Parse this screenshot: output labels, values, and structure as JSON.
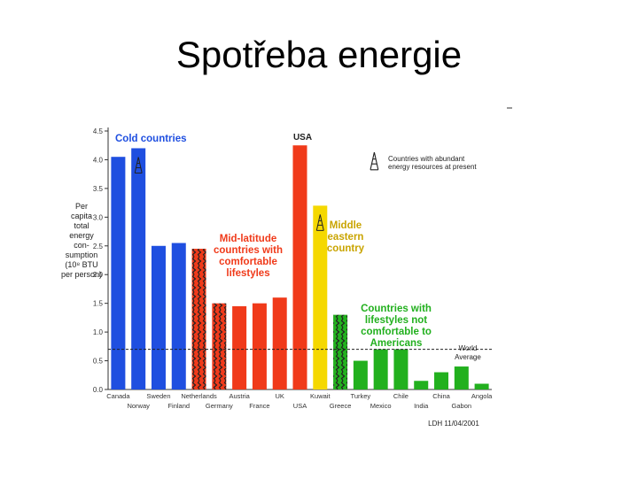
{
  "slide": {
    "title": "Spotřeba energie"
  },
  "chart_data": {
    "type": "bar",
    "ylabel_lines": [
      "Per",
      "capita",
      "total",
      "energy",
      "con-",
      "sumption",
      "(10⁸ BTU",
      "per person)"
    ],
    "ylim": [
      0,
      4.5
    ],
    "yticks": [
      "4.5",
      "4.0",
      "3.5",
      "3.0",
      "2.5",
      "2.0",
      "1.5",
      "1.0",
      "0.5",
      "0.0"
    ],
    "categories": [
      "Canada",
      "Norway",
      "Sweden",
      "Finland",
      "Netherlands",
      "Germany",
      "Austria",
      "France",
      "UK",
      "USA",
      "Kuwait",
      "Greece",
      "Turkey",
      "Mexico",
      "Chile",
      "India",
      "China",
      "Gabon",
      "Angola"
    ],
    "values": [
      4.05,
      4.2,
      2.5,
      2.55,
      2.45,
      1.5,
      1.45,
      1.5,
      1.6,
      4.25,
      3.2,
      1.3,
      0.5,
      0.7,
      0.7,
      0.15,
      0.3,
      0.4,
      0.1
    ],
    "groups": [
      "cold",
      "cold",
      "cold",
      "cold",
      "mid",
      "mid",
      "mid",
      "mid",
      "mid",
      "usa",
      "kuwait",
      "low",
      "low",
      "low",
      "low",
      "low",
      "low",
      "low",
      "low"
    ],
    "hatched": [
      false,
      false,
      false,
      false,
      true,
      true,
      false,
      false,
      false,
      false,
      false,
      true,
      false,
      false,
      false,
      false,
      false,
      false,
      false
    ],
    "derricks": [
      1,
      10
    ],
    "world_average": 0.7,
    "colors": {
      "cold": "#1f4fe0",
      "mid": "#f03a1a",
      "usa": "#f03a1a",
      "kuwait": "#f5d800",
      "low": "#22b01e"
    },
    "annotations": {
      "cold": "Cold countries",
      "usa": "USA",
      "mid": [
        "Mid-latitude",
        "countries with",
        "comfortable",
        "lifestyles"
      ],
      "middle_east": [
        "Middle",
        "eastern",
        "country"
      ],
      "low": [
        "Countries with",
        "lifestyles not",
        "comfortable to",
        "Americans"
      ],
      "world_avg": [
        "World",
        "Average"
      ],
      "legend": [
        "Countries with abundant",
        "energy resources at present"
      ],
      "credit": "LDH 11/04/2001"
    },
    "annotation_colors": {
      "cold": "#1f4fe0",
      "mid": "#f03a1a",
      "middle_east": "#c9a400",
      "low": "#22b01e",
      "dark": "#222222"
    }
  }
}
